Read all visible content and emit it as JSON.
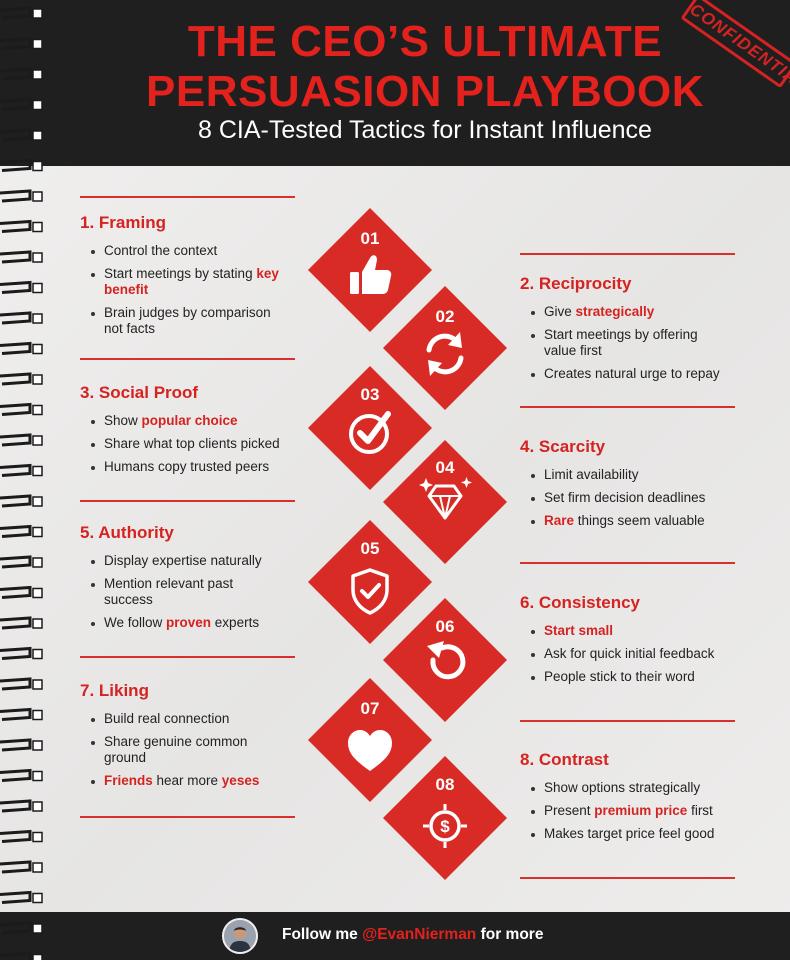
{
  "header": {
    "title_line1": "THE CEO’S ULTIMATE",
    "title_line2": "PERSUASION PLAYBOOK",
    "subtitle": "8 CIA-Tested Tactics for Instant Influence",
    "stamp": "CONFIDENTIAL"
  },
  "colors": {
    "accent": "#e3211d",
    "dark": "#1f1f1f",
    "paper": "#ecebea"
  },
  "tactics": [
    {
      "num": "01",
      "icon": "thumbs-up-icon"
    },
    {
      "num": "02",
      "icon": "refresh-arrows-icon"
    },
    {
      "num": "03",
      "icon": "check-circle-icon"
    },
    {
      "num": "04",
      "icon": "diamond-gem-icon"
    },
    {
      "num": "05",
      "icon": "shield-check-icon"
    },
    {
      "num": "06",
      "icon": "rotate-arrow-icon"
    },
    {
      "num": "07",
      "icon": "heart-icon"
    },
    {
      "num": "08",
      "icon": "dollar-target-icon"
    }
  ],
  "sections": {
    "framing": {
      "title": "1. Framing",
      "b1": "Control the context",
      "b2_pre": "Start meetings by stating ",
      "b2_hl": "key benefit",
      "b3": "Brain judges by comparison not facts"
    },
    "reciprocity": {
      "title": "2. Reciprocity",
      "b1_pre": "Give ",
      "b1_hl": "strategically",
      "b2": "Start meetings by offering value first",
      "b3": "Creates natural urge to repay"
    },
    "social_proof": {
      "title": "3. Social Proof",
      "b1_pre": "Show ",
      "b1_hl": "popular choice",
      "b2": "Share what top clients picked",
      "b3": "Humans copy trusted peers"
    },
    "scarcity": {
      "title": "4. Scarcity",
      "b1": "Limit availability",
      "b2": "Set firm decision deadlines",
      "b3_hl": "Rare",
      "b3_post": " things seem valuable"
    },
    "authority": {
      "title": "5. Authority",
      "b1": "Display expertise naturally",
      "b2": "Mention relevant past success",
      "b3_pre": "We follow ",
      "b3_hl": "proven",
      "b3_post": " experts"
    },
    "consistency": {
      "title": "6. Consistency",
      "b1_hl": "Start small",
      "b2": "Ask for quick initial feedback",
      "b3": "People stick to their word"
    },
    "liking": {
      "title": "7. Liking",
      "b1": "Build real connection",
      "b2": "Share genuine common ground",
      "b3_hl": "Friends",
      "b3_mid": " hear more ",
      "b3_hl2": "yeses"
    },
    "contrast": {
      "title": "8. Contrast",
      "b1": "Show options strategically",
      "b2_pre": "Present ",
      "b2_hl": "premium price",
      "b2_post": " first",
      "b3": "Makes target price feel good"
    }
  },
  "footer": {
    "follow_pre": "Follow me ",
    "handle": "@EvanNierman",
    "follow_post": " for more",
    "avatar_icon": "avatar-icon"
  }
}
